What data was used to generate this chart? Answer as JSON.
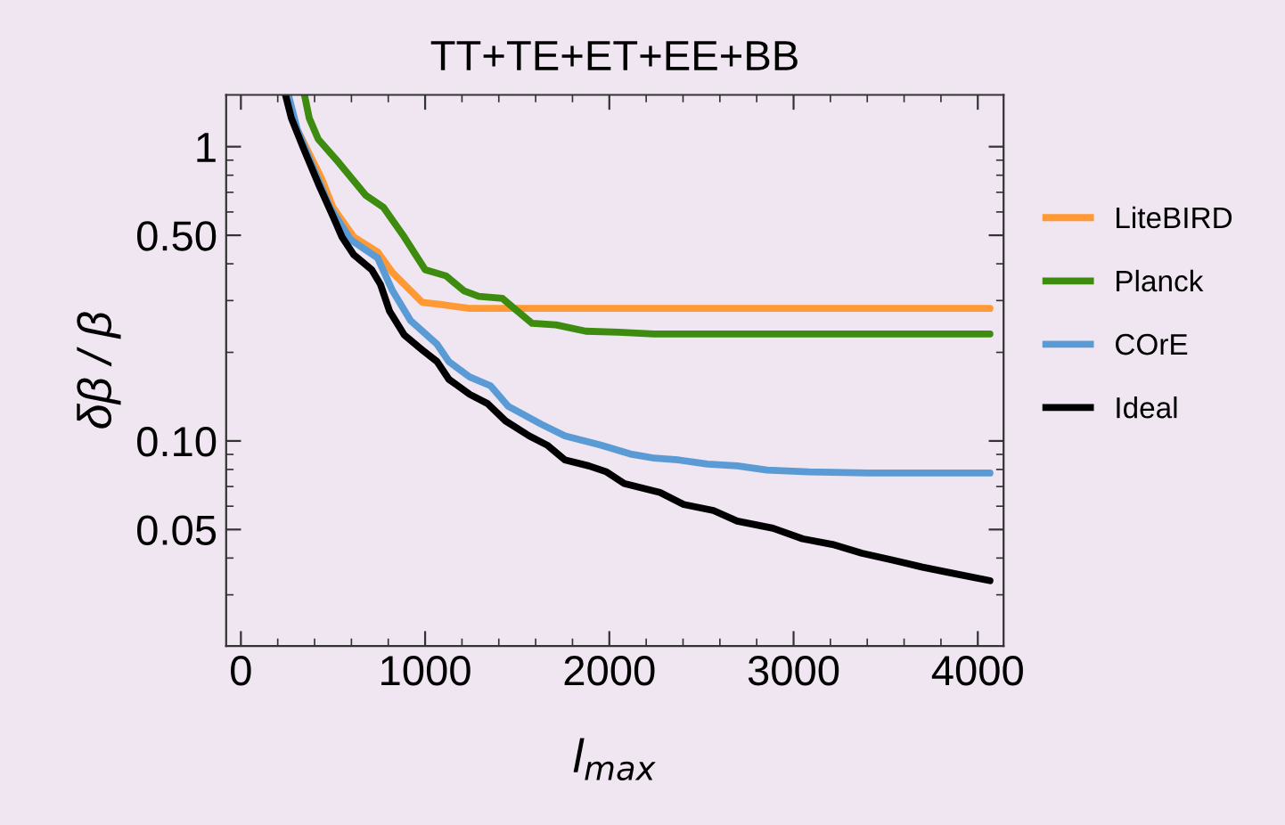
{
  "chart_data": {
    "type": "line",
    "title": "TT+TE+ET+EE+BB",
    "xlabel": "l$_{max}$",
    "ylabel": "δβ / β",
    "log": "y",
    "grid": false,
    "legend": "right",
    "line_style": "solid",
    "marker": "none",
    "xlim": [
      -80,
      4140
    ],
    "ylim": [
      0.0201,
      1.5
    ],
    "xticks": [
      0,
      {
        "value": 200,
        "label": null
      },
      {
        "value": 400,
        "label": null
      },
      {
        "value": 600,
        "label": null
      },
      {
        "value": 800,
        "label": null
      },
      1000,
      {
        "value": 1200,
        "label": null
      },
      {
        "value": 1400,
        "label": null
      },
      {
        "value": 1600,
        "label": null
      },
      {
        "value": 1800,
        "label": null
      },
      2000,
      {
        "value": 2200,
        "label": null
      },
      {
        "value": 2400,
        "label": null
      },
      {
        "value": 2600,
        "label": null
      },
      {
        "value": 2800,
        "label": null
      },
      3000,
      {
        "value": 3200,
        "label": null
      },
      {
        "value": 3400,
        "label": null
      },
      {
        "value": 3600,
        "label": null
      },
      {
        "value": 3800,
        "label": null
      },
      4000
    ],
    "yticks": [
      {
        "value": 0.03,
        "label": null
      },
      {
        "value": 0.04,
        "label": null
      },
      0.05,
      {
        "value": 0.06,
        "label": null
      },
      {
        "value": 0.07,
        "label": null
      },
      {
        "value": 0.08,
        "label": null
      },
      {
        "value": 0.09,
        "label": null
      },
      {
        "value": 0.1,
        "label": "0.10"
      },
      {
        "value": 0.2,
        "label": null
      },
      {
        "value": 0.3,
        "label": null
      },
      {
        "value": 0.4,
        "label": null
      },
      {
        "value": 0.5,
        "label": "0.50"
      },
      {
        "value": 0.6,
        "label": null
      },
      {
        "value": 0.7,
        "label": null
      },
      {
        "value": 0.8,
        "label": null
      },
      {
        "value": 0.9,
        "label": null
      },
      1
    ],
    "series": [
      {
        "name": "LiteBIRD",
        "color": "#ff9933",
        "x": [
          307,
          436,
          500,
          613,
          742,
          823,
          904,
          984,
          1081,
          1242,
          4066
        ],
        "values": [
          1.14,
          0.785,
          0.622,
          0.493,
          0.439,
          0.373,
          0.332,
          0.296,
          0.291,
          0.282,
          0.282
        ]
      },
      {
        "name": "Planck",
        "color": "#3d8c0f",
        "x": [
          345,
          371,
          420,
          532,
          678,
          774,
          887,
          1000,
          1113,
          1210,
          1291,
          1420,
          1484,
          1581,
          1710,
          1872,
          2049,
          2243,
          4066
        ],
        "values": [
          1.5,
          1.25,
          1.06,
          0.882,
          0.683,
          0.622,
          0.493,
          0.382,
          0.364,
          0.324,
          0.31,
          0.305,
          0.282,
          0.251,
          0.248,
          0.236,
          0.234,
          0.231,
          0.231
        ]
      },
      {
        "name": "COrE",
        "color": "#5b9bd5",
        "x": [
          258,
          307,
          387,
          484,
          597,
          742,
          823,
          920,
          1065,
          1129,
          1242,
          1355,
          1452,
          1630,
          1759,
          1952,
          2114,
          2243,
          2372,
          2533,
          2694,
          2856,
          3082,
          3404,
          4066
        ],
        "values": [
          1.5,
          1.14,
          0.862,
          0.622,
          0.482,
          0.419,
          0.324,
          0.257,
          0.213,
          0.186,
          0.165,
          0.154,
          0.131,
          0.114,
          0.104,
          0.0968,
          0.0903,
          0.0874,
          0.0862,
          0.0834,
          0.0823,
          0.0796,
          0.0785,
          0.0778,
          0.0778
        ]
      },
      {
        "name": "Ideal",
        "color": "#000000",
        "x": [
          242,
          274,
          339,
          420,
          500,
          549,
          613,
          710,
          758,
          807,
          887,
          984,
          1065,
          1129,
          1242,
          1339,
          1436,
          1565,
          1662,
          1759,
          1888,
          1985,
          2081,
          2275,
          2404,
          2565,
          2694,
          2888,
          3049,
          3211,
          3372,
          3534,
          3695,
          3856,
          4066
        ],
        "values": [
          1.5,
          1.25,
          0.99,
          0.749,
          0.58,
          0.493,
          0.429,
          0.382,
          0.34,
          0.276,
          0.229,
          0.204,
          0.186,
          0.162,
          0.144,
          0.134,
          0.117,
          0.104,
          0.0968,
          0.0862,
          0.0823,
          0.0785,
          0.0716,
          0.0668,
          0.0608,
          0.058,
          0.0534,
          0.0505,
          0.0465,
          0.0445,
          0.0415,
          0.0394,
          0.0373,
          0.0356,
          0.0335
        ]
      }
    ]
  }
}
